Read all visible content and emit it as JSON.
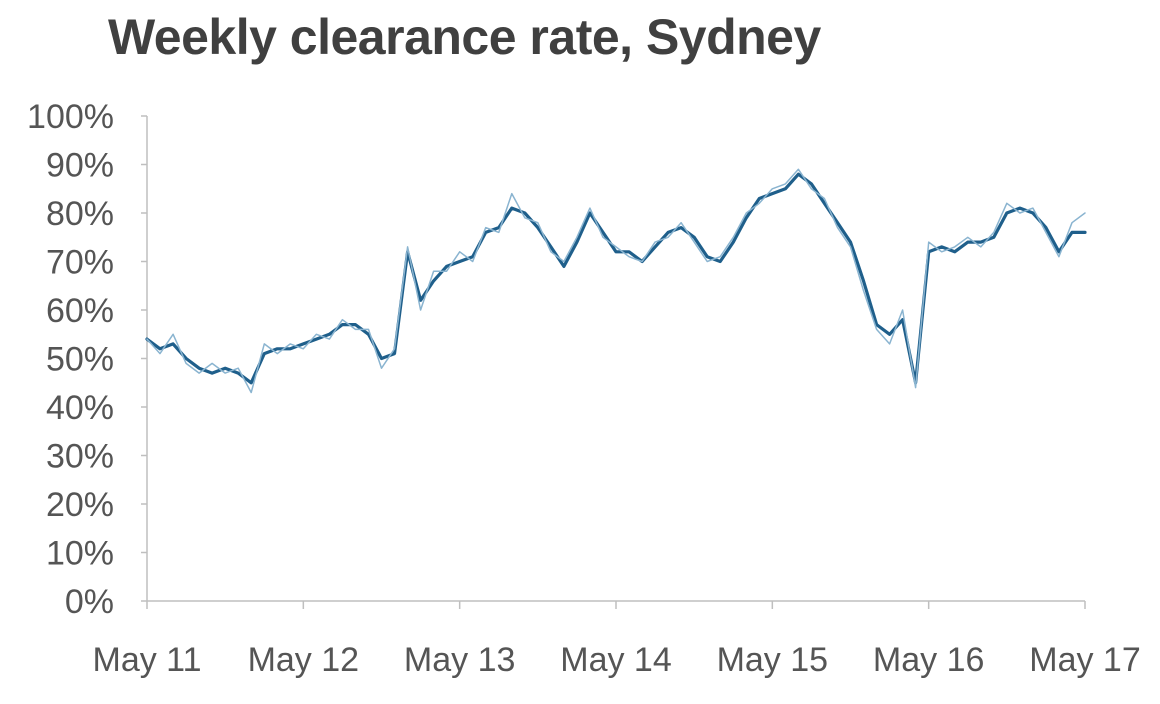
{
  "chart_data": {
    "type": "line",
    "title": "Weekly clearance rate, Sydney",
    "xlabel": "",
    "ylabel": "",
    "ylim": [
      0,
      100
    ],
    "y_ticks": [
      "0%",
      "10%",
      "20%",
      "30%",
      "40%",
      "50%",
      "60%",
      "70%",
      "80%",
      "90%",
      "100%"
    ],
    "x_ticks": [
      "May 11",
      "May 12",
      "May 13",
      "May 14",
      "May 15",
      "May 16",
      "May 17"
    ],
    "xlim": [
      "2011-05",
      "2017-05"
    ],
    "grid": false,
    "legend": "none",
    "colors": {
      "weekly": "#8ab4d0",
      "smoothed": "#1f5f8b",
      "axis": "#bfbfbf",
      "text": "#555555",
      "title": "#404040"
    },
    "series": [
      {
        "x": [
          "2011-05",
          "2011-06",
          "2011-07",
          "2011-08",
          "2011-09",
          "2011-10",
          "2011-11",
          "2011-12",
          "2012-01",
          "2012-02",
          "2012-03",
          "2012-04",
          "2012-05",
          "2012-06",
          "2012-07",
          "2012-08",
          "2012-09",
          "2012-10",
          "2012-11",
          "2012-12",
          "2013-01",
          "2013-02",
          "2013-03",
          "2013-04",
          "2013-05",
          "2013-06",
          "2013-07",
          "2013-08",
          "2013-09",
          "2013-10",
          "2013-11",
          "2013-12",
          "2014-01",
          "2014-02",
          "2014-03",
          "2014-04",
          "2014-05",
          "2014-06",
          "2014-07",
          "2014-08",
          "2014-09",
          "2014-10",
          "2014-11",
          "2014-12",
          "2015-01",
          "2015-02",
          "2015-03",
          "2015-04",
          "2015-05",
          "2015-06",
          "2015-07",
          "2015-08",
          "2015-09",
          "2015-10",
          "2015-11",
          "2015-12",
          "2016-01",
          "2016-02",
          "2016-03",
          "2016-04",
          "2016-05",
          "2016-06",
          "2016-07",
          "2016-08",
          "2016-09",
          "2016-10",
          "2016-11",
          "2016-12",
          "2017-01",
          "2017-02",
          "2017-03",
          "2017-04",
          "2017-05"
        ],
        "values": [
          54,
          52,
          53,
          50,
          48,
          47,
          48,
          47,
          45,
          51,
          52,
          52,
          53,
          54,
          55,
          57,
          57,
          55,
          50,
          51,
          72,
          62,
          66,
          69,
          70,
          71,
          76,
          77,
          81,
          80,
          77,
          73,
          69,
          74,
          80,
          76,
          72,
          72,
          70,
          73,
          76,
          77,
          75,
          71,
          70,
          74,
          79,
          83,
          84,
          85,
          88,
          86,
          82,
          78,
          74,
          66,
          57,
          55,
          58,
          45,
          72,
          73,
          72,
          74,
          74,
          75,
          80,
          81,
          80,
          77,
          72,
          76,
          76
        ]
      },
      {
        "x": [
          "2011-05",
          "2011-06",
          "2011-07",
          "2011-08",
          "2011-09",
          "2011-10",
          "2011-11",
          "2011-12",
          "2012-01",
          "2012-02",
          "2012-03",
          "2012-04",
          "2012-05",
          "2012-06",
          "2012-07",
          "2012-08",
          "2012-09",
          "2012-10",
          "2012-11",
          "2012-12",
          "2013-01",
          "2013-02",
          "2013-03",
          "2013-04",
          "2013-05",
          "2013-06",
          "2013-07",
          "2013-08",
          "2013-09",
          "2013-10",
          "2013-11",
          "2013-12",
          "2014-01",
          "2014-02",
          "2014-03",
          "2014-04",
          "2014-05",
          "2014-06",
          "2014-07",
          "2014-08",
          "2014-09",
          "2014-10",
          "2014-11",
          "2014-12",
          "2015-01",
          "2015-02",
          "2015-03",
          "2015-04",
          "2015-05",
          "2015-06",
          "2015-07",
          "2015-08",
          "2015-09",
          "2015-10",
          "2015-11",
          "2015-12",
          "2016-01",
          "2016-02",
          "2016-03",
          "2016-04",
          "2016-05",
          "2016-06",
          "2016-07",
          "2016-08",
          "2016-09",
          "2016-10",
          "2016-11",
          "2016-12",
          "2017-01",
          "2017-02",
          "2017-03",
          "2017-04",
          "2017-05"
        ],
        "values": [
          54,
          51,
          55,
          49,
          47,
          49,
          47,
          48,
          43,
          53,
          51,
          53,
          52,
          55,
          54,
          58,
          56,
          56,
          48,
          52,
          73,
          60,
          68,
          68,
          72,
          70,
          77,
          76,
          84,
          79,
          78,
          72,
          70,
          75,
          81,
          75,
          73,
          71,
          70,
          74,
          75,
          78,
          74,
          70,
          71,
          75,
          80,
          82,
          85,
          86,
          89,
          85,
          83,
          77,
          73,
          64,
          56,
          53,
          60,
          44,
          74,
          72,
          73,
          75,
          73,
          76,
          82,
          80,
          81,
          76,
          71,
          78,
          80
        ]
      }
    ]
  }
}
